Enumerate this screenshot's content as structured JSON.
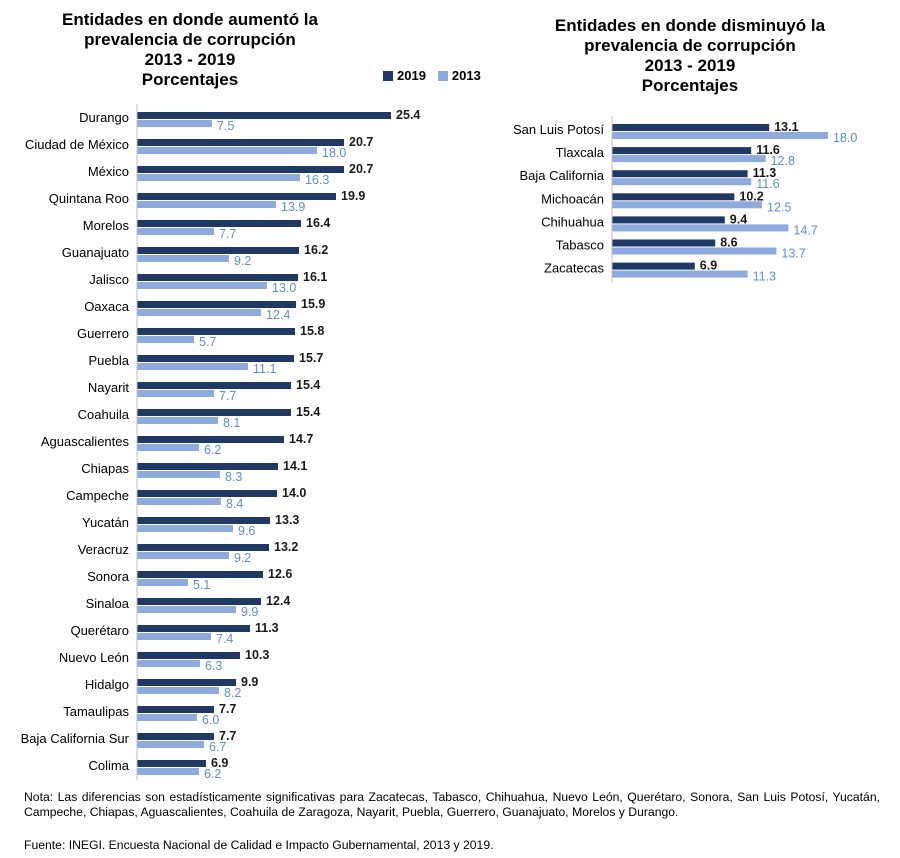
{
  "colors": {
    "y2019": "#1f3864",
    "y2013": "#8faadc",
    "label2013": "#5b8fd0"
  },
  "legend": {
    "label_2019": "2019",
    "label_2013": "2013"
  },
  "note": "Nota: Las diferencias son estadísticamente significativas para Zacatecas, Tabasco, Chihuahua, Nuevo León, Querétaro, Sonora, San Luis Potosí, Yucatán, Campeche, Chiapas, Aguascalientes, Coahuila de Zaragoza, Nayarit, Puebla, Guerrero, Guanajuato, Morelos y Durango.",
  "source": "Fuente: INEGI. Encuesta Nacional de Calidad e Impacto Gubernamental, 2013 y 2019.",
  "chart_data": [
    {
      "type": "bar",
      "title": "Entidades en donde aumentó la prevalencia de corrupción 2013 - 2019 Porcentajes",
      "title_lines": [
        "Entidades en donde aumentó la",
        "prevalencia de corrupción",
        "2013 - 2019",
        "Porcentajes"
      ],
      "orientation": "horizontal",
      "categories": [
        "Durango",
        "Ciudad de México",
        "México",
        "Quintana Roo",
        "Morelos",
        "Guanajuato",
        "Jalisco",
        "Oaxaca",
        "Guerrero",
        "Puebla",
        "Nayarit",
        "Coahuila",
        "Aguascalientes",
        "Chiapas",
        "Campeche",
        "Yucatán",
        "Veracruz",
        "Sonora",
        "Sinaloa",
        "Querétaro",
        "Nuevo León",
        "Hidalgo",
        "Tamaulipas",
        "Baja California Sur",
        "Colima"
      ],
      "series": [
        {
          "name": "2019",
          "values": [
            25.4,
            20.7,
            20.7,
            19.9,
            16.4,
            16.2,
            16.1,
            15.9,
            15.8,
            15.7,
            15.4,
            15.4,
            14.7,
            14.1,
            14.0,
            13.3,
            13.2,
            12.6,
            12.4,
            11.3,
            10.3,
            9.9,
            7.7,
            7.7,
            6.9
          ]
        },
        {
          "name": "2013",
          "values": [
            7.5,
            18.0,
            16.3,
            13.9,
            7.7,
            9.2,
            13.0,
            12.4,
            5.7,
            11.1,
            7.7,
            8.1,
            6.2,
            8.3,
            8.4,
            9.6,
            9.2,
            5.1,
            9.9,
            7.4,
            6.3,
            8.2,
            6.0,
            6.7,
            6.2
          ]
        }
      ],
      "value_labels": {
        "2019": [
          "25.4",
          "20.7",
          "20.7",
          "19.9",
          "16.4",
          "16.2",
          "16.1",
          "15.9",
          "15.8",
          "15.7",
          "15.4",
          "15.4",
          "14.7",
          "14.1",
          "14.0",
          "13.3",
          "13.2",
          "12.6",
          "12.4",
          "11.3",
          "10.3",
          "9.9",
          "7.7",
          "7.7",
          "6.9"
        ],
        "2013": [
          "7.5",
          "18.0",
          "16.3",
          "13.9",
          "7.7",
          "9.2",
          "13.0",
          "12.4",
          "5.7",
          "11.1",
          "7.7",
          "8.1",
          "6.2",
          "8.3",
          "8.4",
          "9.6",
          "9.2",
          "5.1",
          "9.9",
          "7.4",
          "6.3",
          "8.2",
          "6.0",
          "6.7",
          "6.2"
        ]
      },
      "grid": false
    },
    {
      "type": "bar",
      "title": "Entidades en donde disminuyó la prevalencia de corrupción 2013 - 2019 Porcentajes",
      "title_lines": [
        "Entidades en donde disminuyó la",
        "prevalencia de corrupción",
        "2013 - 2019",
        "Porcentajes"
      ],
      "orientation": "horizontal",
      "categories": [
        "San Luis Potosí",
        "Tlaxcala",
        "Baja California",
        "Michoacán",
        "Chihuahua",
        "Tabasco",
        "Zacatecas"
      ],
      "series": [
        {
          "name": "2019",
          "values": [
            13.1,
            11.6,
            11.3,
            10.2,
            9.4,
            8.6,
            6.9
          ]
        },
        {
          "name": "2013",
          "values": [
            18.0,
            12.8,
            11.6,
            12.5,
            14.7,
            13.7,
            11.3
          ]
        }
      ],
      "value_labels": {
        "2019": [
          "13.1",
          "11.6",
          "11.3",
          "10.2",
          "9.4",
          "8.6",
          "6.9"
        ],
        "2013": [
          "18.0",
          "12.8",
          "11.6",
          "12.5",
          "14.7",
          "13.7",
          "11.3"
        ]
      },
      "grid": false
    }
  ]
}
